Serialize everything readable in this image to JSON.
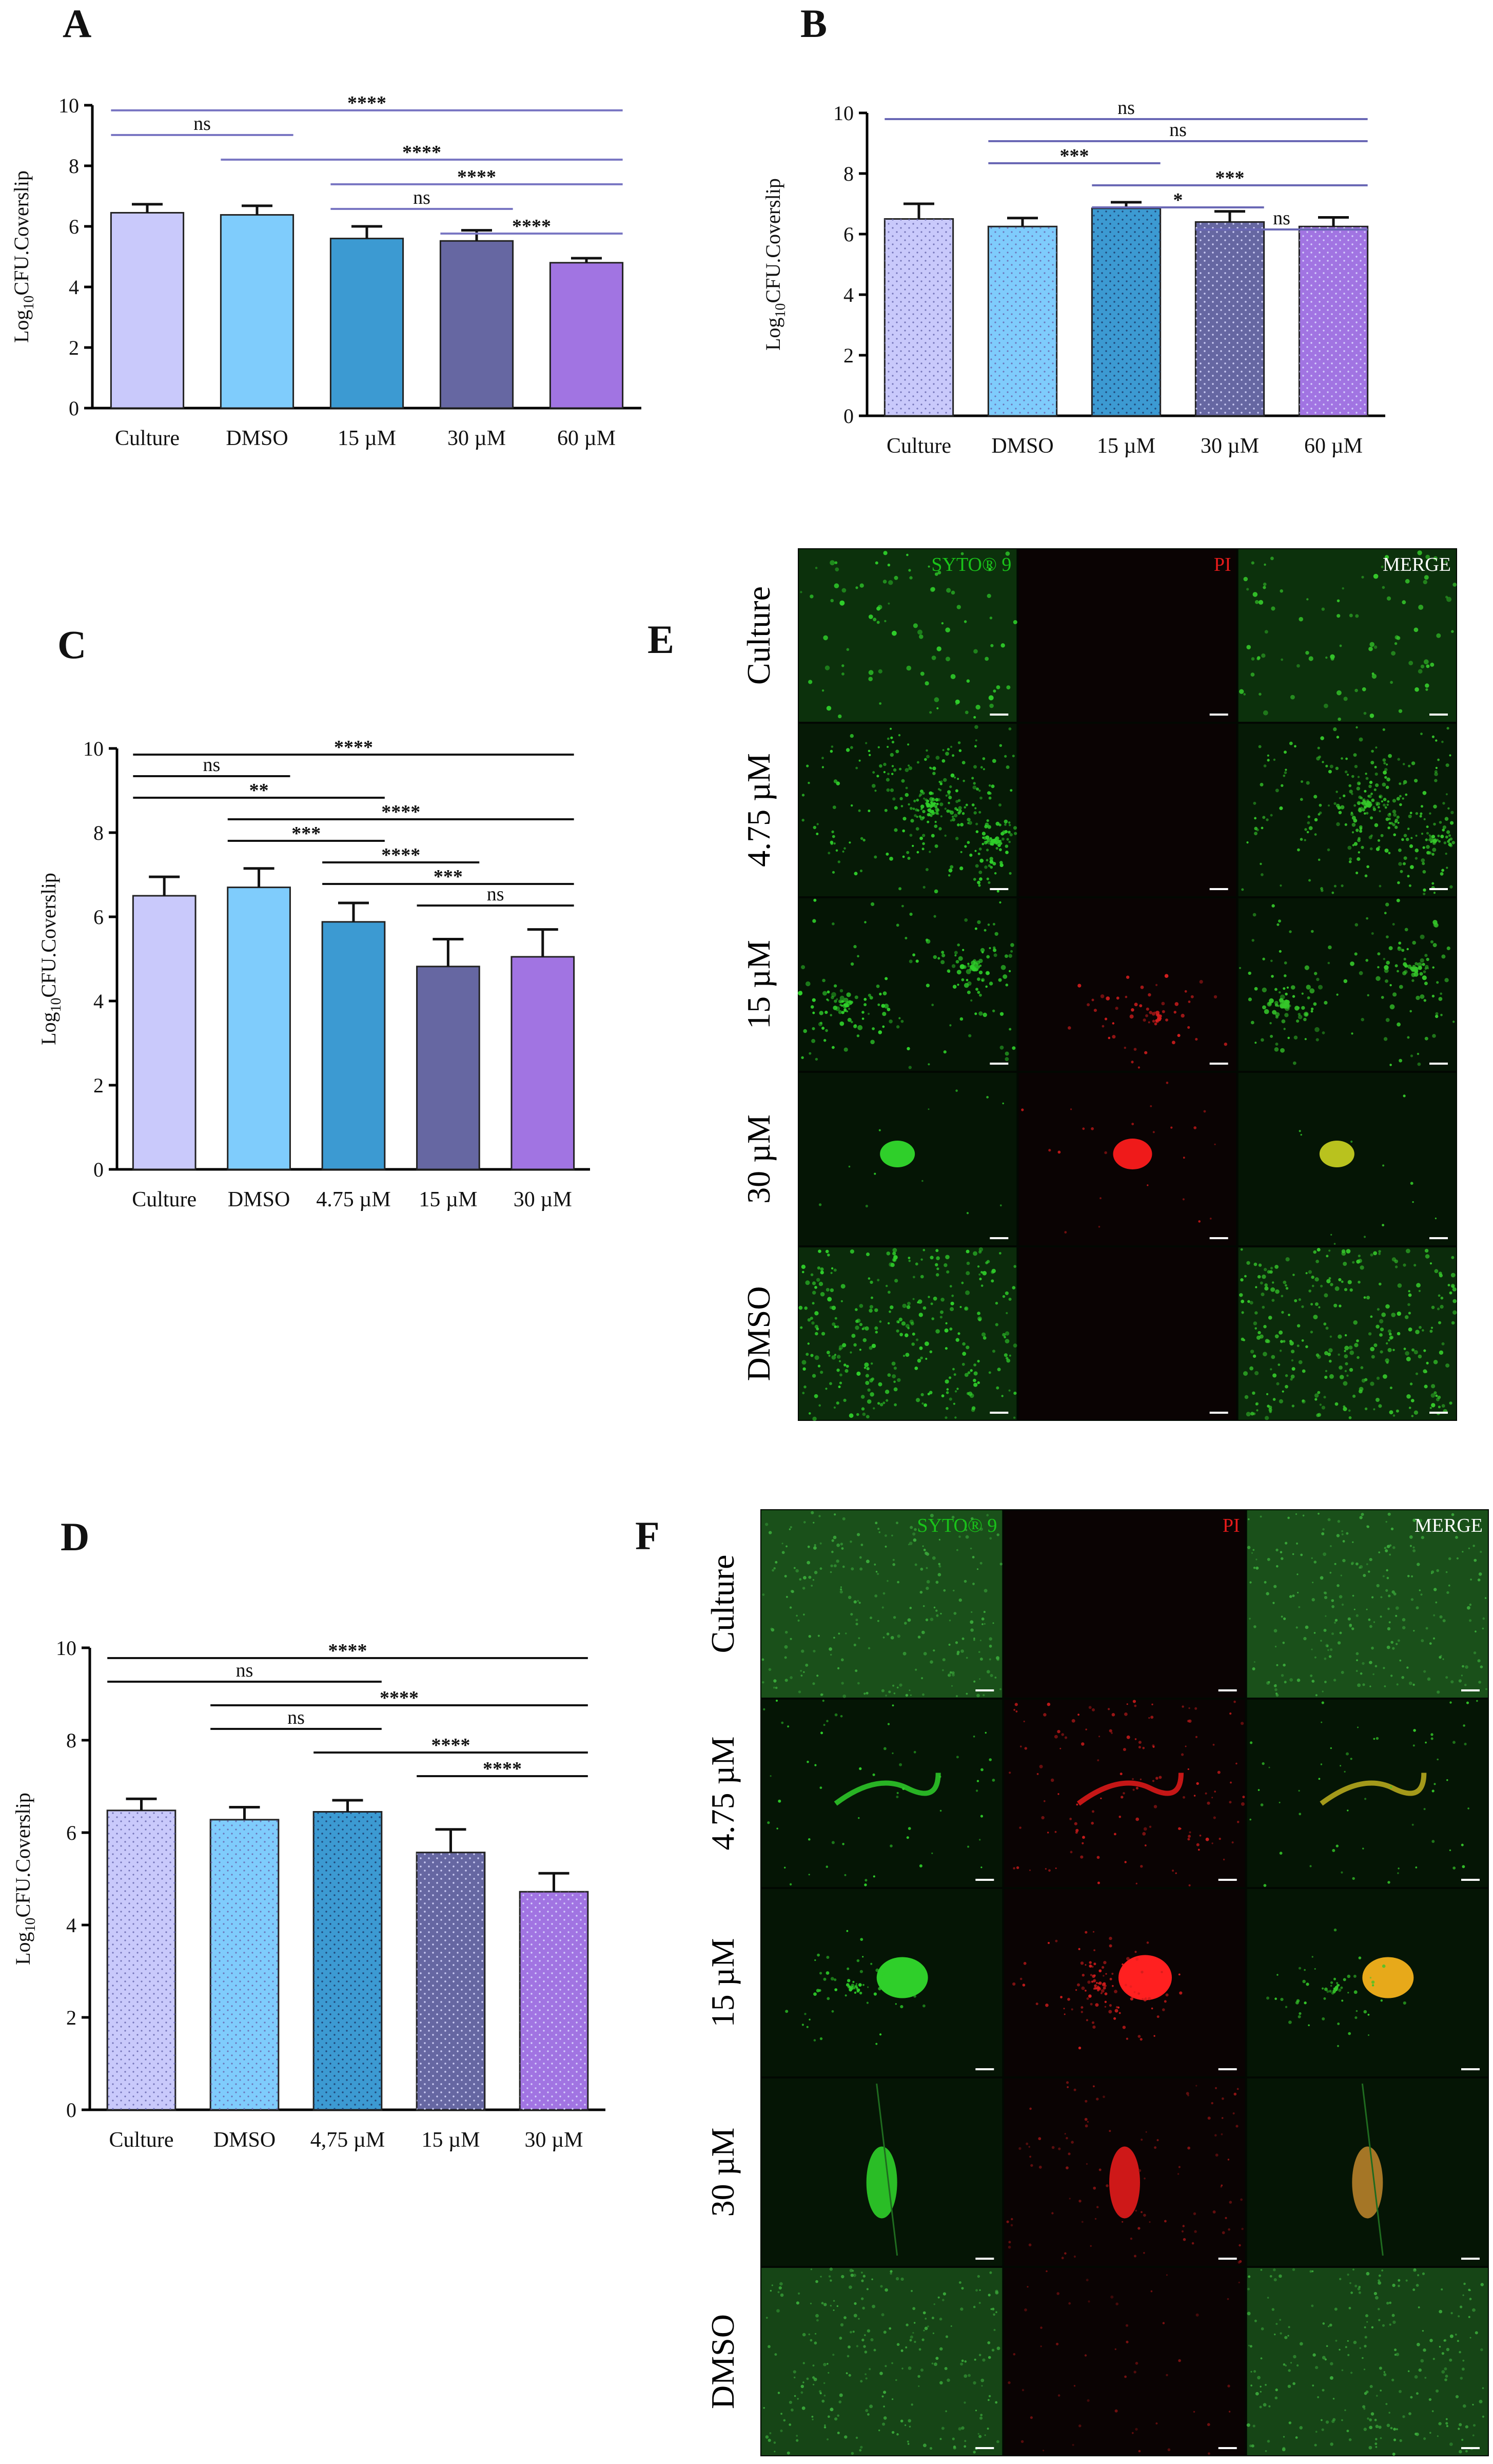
{
  "panels": [
    "A",
    "B",
    "C",
    "D",
    "E",
    "F"
  ],
  "ylabel_prefix": "Log",
  "ylabel_sub": "10",
  "ylabel_suffix": "CFU.Coverslip",
  "colors": {
    "culture": "#c9c9fb",
    "dmso": "#7fccfc",
    "mid": "#3c9ad2",
    "dark": "#6667a2",
    "purple": "#a174e2",
    "sig_line_A": "#7a77c3",
    "sig_line_B": "#6a68b5",
    "syto_label": "#19c219",
    "pi_label": "#e41b1b",
    "merge_label": "#ffffff"
  },
  "chart_data": [
    {
      "panel": "A",
      "type": "bar",
      "categories": [
        "Culture",
        "DMSO",
        "15 µM",
        "30 µM",
        "60 µM"
      ],
      "values": [
        6.45,
        6.38,
        5.6,
        5.52,
        4.8
      ],
      "errors": [
        0.28,
        0.3,
        0.4,
        0.35,
        0.15
      ],
      "ylim": [
        0,
        10
      ],
      "yticks": [
        "0",
        "2",
        "4",
        "6",
        "8",
        "10"
      ],
      "patterned": false,
      "comparisons": [
        {
          "from": 0,
          "to": 4,
          "label": "****"
        },
        {
          "from": 0,
          "to": 1,
          "label": "ns"
        },
        {
          "from": 1,
          "to": 4,
          "label": "****"
        },
        {
          "from": 2,
          "to": 4,
          "label": "****"
        },
        {
          "from": 2,
          "to": 3,
          "label": "ns"
        },
        {
          "from": 3,
          "to": 4,
          "label": "****"
        }
      ]
    },
    {
      "panel": "B",
      "type": "bar",
      "categories": [
        "Culture",
        "DMSO",
        "15 µM",
        "30 µM",
        "60 µM"
      ],
      "values": [
        6.5,
        6.25,
        6.85,
        6.4,
        6.25
      ],
      "errors": [
        0.5,
        0.28,
        0.2,
        0.35,
        0.3
      ],
      "ylim": [
        0,
        10
      ],
      "yticks": [
        "0",
        "2",
        "4",
        "6",
        "8",
        "10"
      ],
      "patterned": true,
      "comparisons": [
        {
          "from": 0,
          "to": 4,
          "label": "ns"
        },
        {
          "from": 1,
          "to": 4,
          "label": "ns"
        },
        {
          "from": 1,
          "to": 2,
          "label": "***"
        },
        {
          "from": 2,
          "to": 4,
          "label": "***"
        },
        {
          "from": 2,
          "to": 3,
          "label": "*"
        },
        {
          "from": 3,
          "to": 4,
          "label": "ns"
        }
      ]
    },
    {
      "panel": "C",
      "type": "bar",
      "categories": [
        "Culture",
        "DMSO",
        "4.75 µM",
        "15 µM",
        "30 µM"
      ],
      "values": [
        6.5,
        6.7,
        5.88,
        4.82,
        5.05
      ],
      "errors": [
        0.45,
        0.45,
        0.45,
        0.65,
        0.65
      ],
      "ylim": [
        0,
        10
      ],
      "yticks": [
        "0",
        "2",
        "4",
        "6",
        "8",
        "10"
      ],
      "patterned": false,
      "comparisons": [
        {
          "from": 0,
          "to": 4,
          "label": "****"
        },
        {
          "from": 0,
          "to": 1,
          "label": "ns"
        },
        {
          "from": 0,
          "to": 2,
          "label": "**"
        },
        {
          "from": 1,
          "to": 4,
          "label": "****"
        },
        {
          "from": 1,
          "to": 2,
          "label": "***"
        },
        {
          "from": 2,
          "to": 3,
          "label": "****"
        },
        {
          "from": 2,
          "to": 4,
          "label": "***"
        },
        {
          "from": 3,
          "to": 4,
          "label": "ns"
        }
      ]
    },
    {
      "panel": "D",
      "type": "bar",
      "categories": [
        "Culture",
        "DMSO",
        "4,75 µM",
        "15 µM",
        "30 µM"
      ],
      "values": [
        6.48,
        6.28,
        6.45,
        5.57,
        4.72
      ],
      "errors": [
        0.25,
        0.27,
        0.25,
        0.5,
        0.4
      ],
      "ylim": [
        0,
        10
      ],
      "yticks": [
        "0",
        "2",
        "4",
        "6",
        "8",
        "10"
      ],
      "patterned": true,
      "comparisons": [
        {
          "from": 0,
          "to": 4,
          "label": "****"
        },
        {
          "from": 0,
          "to": 2,
          "label": "ns"
        },
        {
          "from": 1,
          "to": 4,
          "label": "****"
        },
        {
          "from": 1,
          "to": 2,
          "label": "ns"
        },
        {
          "from": 2,
          "to": 4,
          "label": "****"
        },
        {
          "from": 3,
          "to": 4,
          "label": "****"
        }
      ]
    }
  ],
  "micro": [
    {
      "panel": "E",
      "stains": [
        "SYTO® 9",
        "PI",
        "MERGE"
      ],
      "rows": [
        {
          "label": "Culture",
          "pattern": "sparse",
          "pi": "none"
        },
        {
          "label": "4.75 µM",
          "pattern": "sheet",
          "pi": "none"
        },
        {
          "label": "15 µM",
          "pattern": "clusters",
          "pi": "few"
        },
        {
          "label": "30 µM",
          "pattern": "single",
          "pi": "strong"
        },
        {
          "label": "DMSO",
          "pattern": "dense",
          "pi": "none"
        }
      ]
    },
    {
      "panel": "F",
      "stains": [
        "SYTO® 9",
        "PI",
        "MERGE"
      ],
      "rows": [
        {
          "label": "Culture",
          "pattern": "haze",
          "pi": "none"
        },
        {
          "label": "4.75 µM",
          "pattern": "filament",
          "pi": "strong"
        },
        {
          "label": "15 µM",
          "pattern": "blob",
          "pi": "strong"
        },
        {
          "label": "30 µM",
          "pattern": "streak",
          "pi": "strong"
        },
        {
          "label": "DMSO",
          "pattern": "haze2",
          "pi": "weak"
        }
      ]
    }
  ]
}
